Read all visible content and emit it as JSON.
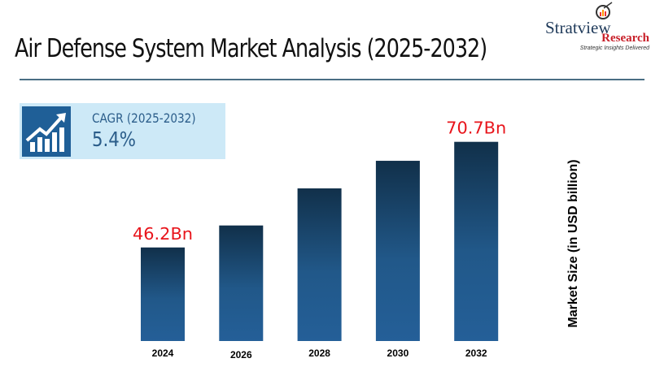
{
  "header": {
    "title": "Air Defense System Market Analysis (2025-2032)"
  },
  "logo": {
    "line1": "Stratview",
    "line2": "Research",
    "tagline": "Strategic Insights Delivered"
  },
  "cagr": {
    "label": "CAGR (2025-2032)",
    "value": "5.4%",
    "icon": "growth-chart-icon"
  },
  "chart_data": {
    "type": "bar",
    "categories": [
      "2024",
      "2026",
      "2028",
      "2030",
      "2032"
    ],
    "values": [
      46.2,
      51.3,
      59.9,
      66.3,
      70.7
    ],
    "data_labels": [
      "46.2Bn",
      "",
      "",
      "",
      "70.7Bn"
    ],
    "ylabel": "Market Size (in USD billion)",
    "colors": {
      "bar_top": "#11304a",
      "bar_bottom": "#245f98",
      "label": "#e8141b"
    },
    "grid": false
  }
}
